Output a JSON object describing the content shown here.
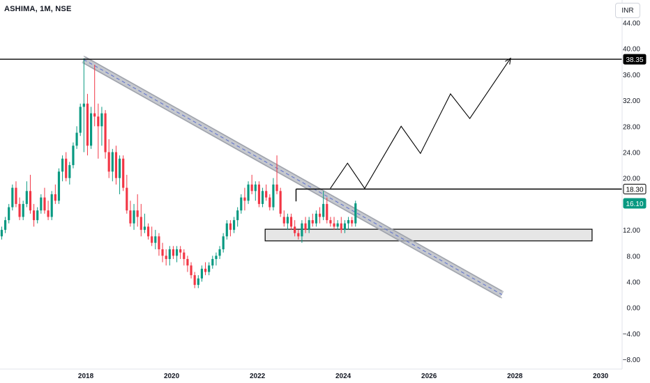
{
  "header": {
    "symbol": "ASHIMA, 1M, NSE",
    "currency": "INR"
  },
  "chart_data": {
    "type": "candlestick",
    "timeframe": "1M",
    "x_axis": {
      "range": [
        2016.0,
        2030.5
      ],
      "ticks": [
        "2018",
        "2020",
        "2022",
        "2024",
        "2026",
        "2028",
        "2030"
      ]
    },
    "y_axis": {
      "range": [
        -9.5,
        47.5
      ],
      "ticks": [
        "44.00",
        "40.00",
        "36.00",
        "32.00",
        "28.00",
        "24.00",
        "20.00",
        "16.00",
        "12.00",
        "8.00",
        "4.00",
        "0.00",
        "−4.00",
        "−8.00"
      ]
    },
    "colors": {
      "up": "#089981",
      "down": "#f23645",
      "current_badge": "#089981"
    },
    "candles": {
      "start": 2016.04,
      "step": 0.0833,
      "ohlc": [
        [
          11,
          12.5,
          10.5,
          12
        ],
        [
          12,
          14,
          11.5,
          13.5
        ],
        [
          13.5,
          16,
          13,
          15.5
        ],
        [
          15.5,
          19,
          15,
          18.5
        ],
        [
          18.5,
          19.5,
          15.5,
          16
        ],
        [
          16,
          17,
          13.5,
          14
        ],
        [
          14,
          16.5,
          13.5,
          16
        ],
        [
          16,
          19.5,
          15.5,
          18
        ],
        [
          18,
          20.5,
          14.5,
          15
        ],
        [
          15,
          16,
          12.5,
          13.5
        ],
        [
          13.5,
          15.5,
          13,
          15
        ],
        [
          15,
          17.5,
          14.5,
          17
        ],
        [
          17,
          18.5,
          14.5,
          15
        ],
        [
          15,
          16.5,
          13.5,
          14
        ],
        [
          14,
          18,
          13.5,
          17.5
        ],
        [
          17.5,
          19,
          16,
          16.5
        ],
        [
          16.5,
          21.5,
          16,
          21
        ],
        [
          21,
          23.5,
          19.5,
          23
        ],
        [
          23,
          24,
          19.5,
          20
        ],
        [
          20,
          22.5,
          19,
          22
        ],
        [
          22,
          25.5,
          21.5,
          25
        ],
        [
          25,
          28,
          24.5,
          27
        ],
        [
          27,
          31.5,
          26.5,
          31
        ],
        [
          31,
          38.5,
          24,
          31.5
        ],
        [
          31.5,
          33,
          23.5,
          25
        ],
        [
          25,
          31,
          24.5,
          30
        ],
        [
          30,
          37.5,
          28,
          29.5
        ],
        [
          29.5,
          31.5,
          23,
          28
        ],
        [
          28,
          31,
          25,
          30
        ],
        [
          30,
          30.5,
          23,
          24
        ],
        [
          24,
          26,
          20,
          21
        ],
        [
          21,
          24.5,
          19.5,
          24
        ],
        [
          24,
          25,
          19,
          20
        ],
        [
          20,
          23.5,
          17.5,
          23
        ],
        [
          23,
          23.5,
          18,
          18.5
        ],
        [
          18.5,
          20.5,
          14.5,
          15
        ],
        [
          15,
          16.5,
          12.5,
          13
        ],
        [
          13,
          16,
          12,
          15
        ],
        [
          15,
          17.5,
          12.5,
          14
        ],
        [
          14,
          16,
          11,
          12
        ],
        [
          12,
          14.5,
          11.5,
          12.5
        ],
        [
          12.5,
          13,
          10.5,
          11
        ],
        [
          11,
          12.5,
          9.5,
          10
        ],
        [
          10,
          12,
          9,
          11
        ],
        [
          11,
          11.5,
          8,
          9
        ],
        [
          9,
          10,
          7,
          8
        ],
        [
          8,
          9,
          6.5,
          7.5
        ],
        [
          7.5,
          9.5,
          6.5,
          9
        ],
        [
          9,
          9.5,
          7.5,
          8
        ],
        [
          8,
          9.5,
          7,
          9
        ],
        [
          9,
          9.5,
          7.5,
          8.5
        ],
        [
          8.5,
          9,
          6.5,
          7.5
        ],
        [
          7.5,
          8,
          5.5,
          6.5
        ],
        [
          6.5,
          7,
          4.5,
          5
        ],
        [
          5,
          5.5,
          3,
          3.5
        ],
        [
          3.5,
          5,
          3,
          4.5
        ],
        [
          4.5,
          6.5,
          4,
          6
        ],
        [
          6,
          7,
          5,
          5.5
        ],
        [
          5.5,
          7,
          5,
          6.5
        ],
        [
          6.5,
          8,
          6,
          7.5
        ],
        [
          7.5,
          8.5,
          6.5,
          8
        ],
        [
          8,
          9.5,
          7.5,
          9
        ],
        [
          9,
          11.5,
          8.5,
          11
        ],
        [
          11,
          13.5,
          10.5,
          13
        ],
        [
          13,
          13.5,
          11,
          12
        ],
        [
          12,
          14,
          11.5,
          13.5
        ],
        [
          13.5,
          15.5,
          12.5,
          15
        ],
        [
          15,
          17.5,
          14.5,
          17
        ],
        [
          17,
          18.5,
          15,
          16.5
        ],
        [
          16.5,
          19.5,
          16,
          19
        ],
        [
          19,
          20.5,
          17.5,
          18
        ],
        [
          18,
          19.5,
          16.5,
          19
        ],
        [
          19,
          19.5,
          15.5,
          16
        ],
        [
          16,
          18.5,
          15.5,
          18
        ],
        [
          18,
          19,
          16.5,
          17
        ],
        [
          17,
          17.5,
          15,
          15.5
        ],
        [
          15.5,
          20,
          15,
          19
        ],
        [
          19,
          23.5,
          17.5,
          18
        ],
        [
          18,
          18.5,
          14,
          14.5
        ],
        [
          14,
          15,
          12.5,
          13
        ],
        [
          13,
          14.5,
          12,
          14
        ],
        [
          14,
          14.5,
          12,
          12.5
        ],
        [
          12.5,
          13.5,
          11,
          11.5
        ],
        [
          11.5,
          12,
          10.5,
          11
        ],
        [
          11,
          13.5,
          10,
          13
        ],
        [
          13,
          14,
          11.5,
          12
        ],
        [
          12,
          14,
          11.5,
          13.5
        ],
        [
          13.5,
          14.5,
          12.5,
          13
        ],
        [
          13,
          15,
          12.5,
          14.5
        ],
        [
          14.5,
          15.5,
          13,
          14
        ],
        [
          14,
          18,
          13.5,
          16
        ],
        [
          16,
          17,
          13,
          13.5
        ],
        [
          13.5,
          14,
          12.5,
          13
        ],
        [
          13,
          14,
          12,
          12.5
        ],
        [
          12.5,
          13.5,
          12,
          13
        ],
        [
          13,
          14,
          11.5,
          12
        ],
        [
          12,
          13.5,
          11.5,
          13
        ],
        [
          13,
          14,
          12,
          13.5
        ],
        [
          13.5,
          14,
          12.5,
          13
        ],
        [
          13,
          16.5,
          12.5,
          16.1
        ]
      ]
    },
    "horizontal_levels": [
      {
        "value": 38.35,
        "label": "38.35"
      },
      {
        "value": 18.3,
        "label": "18.30"
      }
    ],
    "current_price": {
      "value": 16.1,
      "label": "16.10"
    },
    "trendline_channel": {
      "from": {
        "x": 2017.95,
        "y": 38.3
      },
      "to": {
        "x": 2027.7,
        "y": 2.0
      }
    },
    "demand_zone": {
      "x_from": 2022.18,
      "x_to": 2029.8,
      "y_from": 10.3,
      "y_to": 12.1
    },
    "resistance_box_line": {
      "x_from": 2022.9,
      "x_to": 2030.5,
      "y": 18.3
    },
    "projection_path": [
      {
        "x": 2023.7,
        "y": 18.4
      },
      {
        "x": 2024.1,
        "y": 22.3
      },
      {
        "x": 2024.5,
        "y": 18.4
      },
      {
        "x": 2025.35,
        "y": 28.0
      },
      {
        "x": 2025.8,
        "y": 23.8
      },
      {
        "x": 2026.5,
        "y": 33.0
      },
      {
        "x": 2026.95,
        "y": 29.2
      },
      {
        "x": 2027.9,
        "y": 38.5
      }
    ]
  }
}
